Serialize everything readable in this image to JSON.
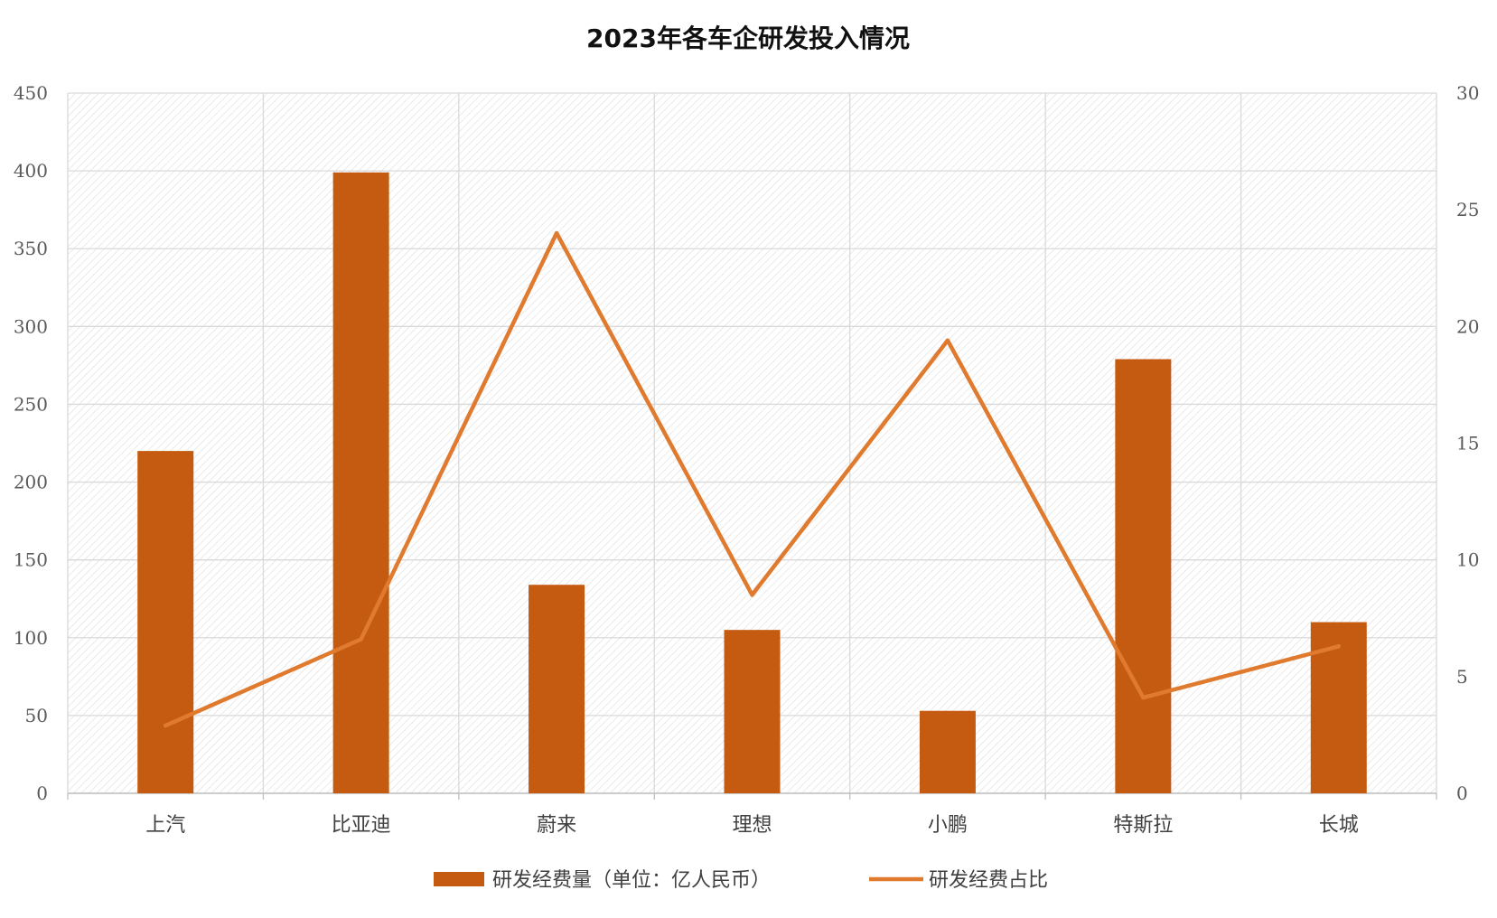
{
  "chart_data": {
    "type": "bar",
    "title": "2023年各车企研发投入情况",
    "categories": [
      "上汽",
      "比亚迪",
      "蔚来",
      "理想",
      "小鹏",
      "特斯拉",
      "长城"
    ],
    "series": [
      {
        "name": "研发经费量（单位：亿人民币）",
        "type": "bar",
        "axis": "left",
        "color": "#C55A11",
        "values": [
          220,
          399,
          134,
          105,
          53,
          279,
          110
        ]
      },
      {
        "name": "研发经费占比",
        "type": "line",
        "axis": "right",
        "color": "#E07A2E",
        "values": [
          2.9,
          6.6,
          24.0,
          8.5,
          19.4,
          4.1,
          6.3
        ]
      }
    ],
    "ylim": [
      0,
      450
    ],
    "yticks": [
      "0",
      "50",
      "100",
      "150",
      "200",
      "250",
      "300",
      "350",
      "400",
      "450"
    ],
    "y2lim": [
      0,
      30
    ],
    "y2ticks": [
      "0",
      "5",
      "10",
      "15",
      "20",
      "25",
      "30"
    ],
    "grid": true,
    "legend": "bottom"
  }
}
